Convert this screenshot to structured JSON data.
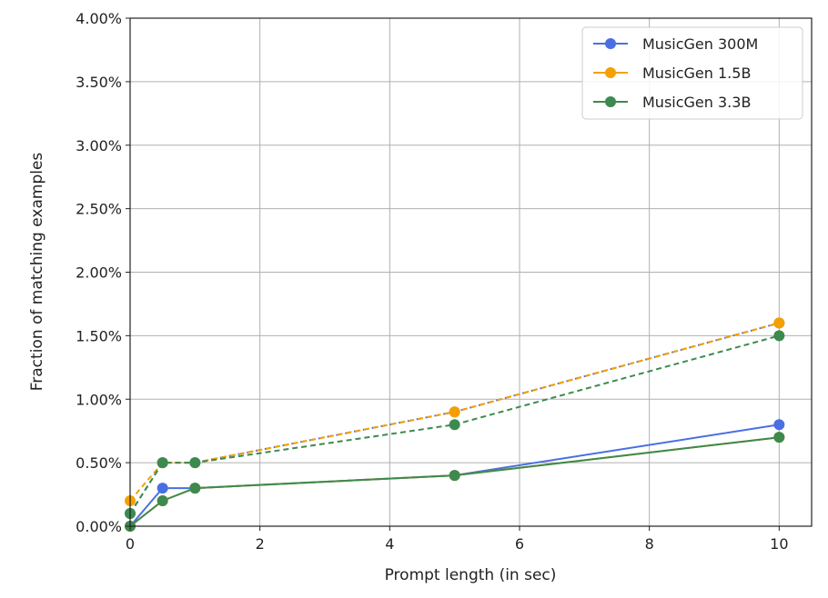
{
  "chart_data": {
    "type": "line",
    "title": "",
    "xlabel": "Prompt length (in sec)",
    "ylabel": "Fraction of matching examples",
    "xlim": [
      0,
      10.5
    ],
    "ylim": [
      0,
      4.0
    ],
    "x_ticks": [
      0,
      2,
      4,
      6,
      8,
      10
    ],
    "x_tick_labels": [
      "0",
      "2",
      "4",
      "6",
      "8",
      "10"
    ],
    "y_ticks": [
      0,
      0.5,
      1.0,
      1.5,
      2.0,
      2.5,
      3.0,
      3.5,
      4.0
    ],
    "y_tick_labels": [
      "0.00%",
      "0.50%",
      "1.00%",
      "1.50%",
      "2.00%",
      "2.50%",
      "3.00%",
      "3.50%",
      "4.00%"
    ],
    "grid": true,
    "legend_position": "top-right",
    "x": [
      0,
      0.5,
      1,
      5,
      10
    ],
    "series": [
      {
        "name": "MusicGen 300M",
        "color": "#4a6fe3",
        "solid": [
          0,
          0.3,
          0.3,
          0.4,
          0.8
        ],
        "dashed": [
          0.1,
          0.5,
          0.5,
          0.9,
          1.6
        ]
      },
      {
        "name": "MusicGen 1.5B",
        "color": "#f5a000",
        "solid": [
          0,
          0.2,
          0.3,
          0.4,
          0.7
        ],
        "dashed": [
          0.2,
          0.5,
          0.5,
          0.9,
          1.6
        ]
      },
      {
        "name": "MusicGen 3.3B",
        "color": "#3d8a4e",
        "solid": [
          0,
          0.2,
          0.3,
          0.4,
          0.7
        ],
        "dashed": [
          0.1,
          0.5,
          0.5,
          0.8,
          1.5
        ]
      }
    ]
  }
}
